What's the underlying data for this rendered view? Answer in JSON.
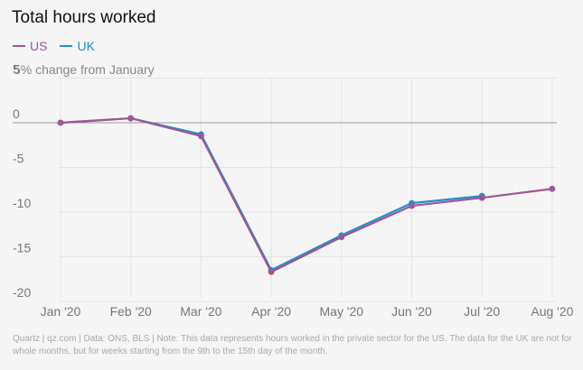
{
  "title": "Total hours worked",
  "subtitle": "5% change from January",
  "footer": "Quartz | qz.com | Data: ONS, BLS | Note: This data represents hours worked in the private sector for the US. The data for the UK are not for whole months, but for weeks starting from the 9th to the 15th day of the month.",
  "colors": {
    "US": "#a05692",
    "UK": "#1f8fcf",
    "zero_line": "#9a9a9a",
    "grid": "#e2e2e2"
  },
  "chart_data": {
    "type": "line",
    "title": "Total hours worked",
    "ylabel": "5% change from January",
    "categories": [
      "Jan '20",
      "Feb '20",
      "Mar '20",
      "Apr '20",
      "May '20",
      "Jun '20",
      "Jul '20",
      "Aug '20"
    ],
    "y_ticks": [
      "5",
      "0",
      "-5",
      "-10",
      "-15",
      "-20"
    ],
    "ylim": [
      -20,
      5
    ],
    "grid": true,
    "legend_position": "top-left",
    "series": [
      {
        "name": "US",
        "values": [
          0,
          0.5,
          -1.5,
          -16.7,
          -12.8,
          -9.3,
          -8.4,
          -7.4
        ]
      },
      {
        "name": "UK",
        "values": [
          0,
          0.5,
          -1.3,
          -16.5,
          -12.6,
          -9.0,
          -8.2,
          null
        ]
      }
    ]
  }
}
